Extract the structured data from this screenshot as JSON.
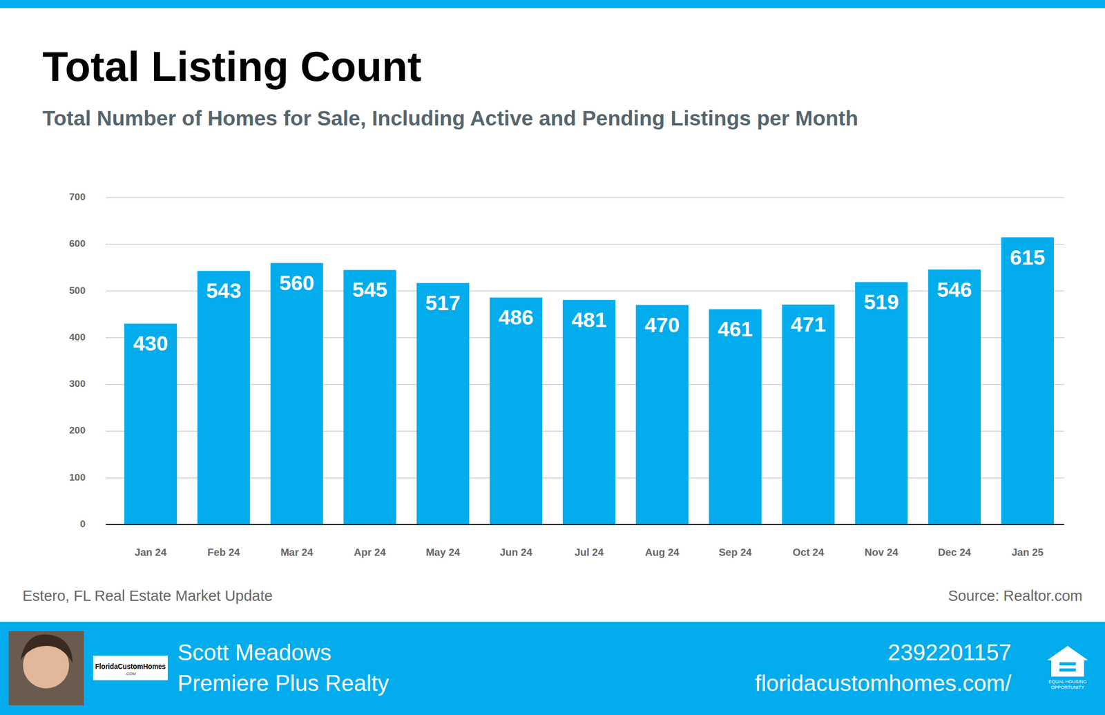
{
  "chart_data": {
    "type": "bar",
    "title": "Total Listing Count",
    "subtitle": "Total Number of Homes for Sale, Including Active and Pending Listings per Month",
    "categories": [
      "Jan 24",
      "Feb 24",
      "Mar 24",
      "Apr 24",
      "May 24",
      "Jun 24",
      "Jul 24",
      "Aug 24",
      "Sep 24",
      "Oct 24",
      "Nov 24",
      "Dec 24",
      "Jan 25"
    ],
    "values": [
      430,
      543,
      560,
      545,
      517,
      486,
      481,
      470,
      461,
      471,
      519,
      546,
      615
    ],
    "color": "#02aced",
    "ylim": [
      0,
      700
    ],
    "yticks": [
      0,
      100,
      200,
      300,
      400,
      500,
      600,
      700
    ],
    "grid": true,
    "data_labels": true
  },
  "notes": {
    "left": "Estero, FL Real Estate Market Update",
    "right": "Source: Realtor.com"
  },
  "footer": {
    "logo_text": "FloridaCustomHomes",
    "logo_subtext": ".COM",
    "name": "Scott Meadows",
    "company": "Premiere Plus Realty",
    "phone": "2392201157",
    "website": "floridacustomhomes.com/",
    "badge_lines": [
      "EQUAL HOUSING",
      "OPPORTUNITY"
    ]
  }
}
